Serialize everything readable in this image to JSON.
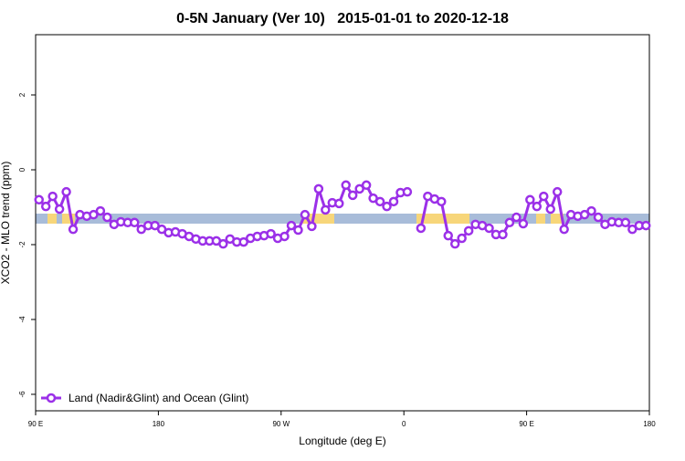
{
  "chart_data": {
    "type": "line",
    "title": "0-5N January (Ver 10)   2015-01-01 to 2020-12-18",
    "x_label": "Longitude (deg E)",
    "y_label": "XCO2 - MLO trend (ppm)",
    "x": [
      92.5,
      97.5,
      102.5,
      107.5,
      112.5,
      117.5,
      122.5,
      127.5,
      132.5,
      137.5,
      142.5,
      147.5,
      152.5,
      157.5,
      162.5,
      167.5,
      172.5,
      177.5,
      182.5,
      187.5,
      192.5,
      197.5,
      202.5,
      207.5,
      212.5,
      217.5,
      222.5,
      227.5,
      232.5,
      237.5,
      242.5,
      247.5,
      252.5,
      257.5,
      262.5,
      267.5,
      272.5,
      277.5,
      282.5,
      287.5,
      292.5,
      297.5,
      302.5,
      307.5,
      312.5,
      317.5,
      322.5,
      327.5,
      332.5,
      337.5,
      342.5,
      347.5,
      352.5,
      357.5,
      362.5,
      367.5,
      372.5,
      377.5,
      382.5,
      387.5,
      392.5,
      397.5,
      402.5,
      407.5,
      412.5,
      417.5,
      422.5,
      427.5,
      432.5,
      437.5,
      442.5,
      447.5,
      452.5,
      457.5,
      462.5,
      467.5,
      472.5,
      477.5,
      482.5,
      487.5,
      492.5,
      497.5,
      502.5,
      507.5,
      512.5,
      517.5,
      522.5,
      527.5,
      532.5,
      537.5
    ],
    "series": [
      {
        "name": "Land (Nadir&Glint) and Ocean (Glint)",
        "color": "#9b30e8",
        "values": [
          -0.8,
          -0.98,
          -0.71,
          -1.05,
          -0.59,
          -1.59,
          -1.2,
          -1.24,
          -1.2,
          -1.1,
          -1.27,
          -1.46,
          -1.39,
          -1.41,
          -1.41,
          -1.59,
          -1.49,
          -1.49,
          -1.59,
          -1.68,
          -1.66,
          -1.71,
          -1.78,
          -1.85,
          -1.9,
          -1.9,
          -1.9,
          -1.98,
          -1.85,
          -1.93,
          -1.93,
          -1.83,
          -1.78,
          -1.76,
          -1.71,
          -1.83,
          -1.78,
          -1.49,
          -1.61,
          -1.2,
          -1.51,
          -0.51,
          -1.07,
          -0.88,
          -0.9,
          -0.41,
          -0.68,
          -0.51,
          -0.41,
          -0.76,
          -0.85,
          -0.98,
          -0.85,
          -0.61,
          -0.59,
          null,
          -1.56,
          -0.71,
          -0.78,
          -0.85,
          -1.76,
          -1.98,
          -1.83,
          -1.63,
          -1.46,
          -1.49,
          -1.56,
          -1.73,
          -1.73,
          -1.41,
          -1.27,
          -1.44,
          -0.8,
          -0.98,
          -0.71,
          -1.05,
          -0.59,
          -1.59,
          -1.2,
          -1.24,
          -1.2,
          -1.1,
          -1.27,
          -1.46,
          -1.39,
          -1.41,
          -1.41,
          -1.59,
          -1.49,
          -1.49
        ]
      }
    ],
    "xlim": [
      90,
      540
    ],
    "xticks": [
      {
        "value": 90,
        "label": "90 E"
      },
      180,
      {
        "value": 270,
        "label": "90 W"
      },
      {
        "value": 360,
        "label": "0"
      },
      {
        "value": 450,
        "label": "90 E"
      },
      {
        "value": 540,
        "label": "180"
      }
    ],
    "ylim": [
      -6.44,
      3.61
    ],
    "yticks": [
      2,
      0,
      -2,
      -4,
      -6
    ],
    "legend": "bottom-left"
  }
}
